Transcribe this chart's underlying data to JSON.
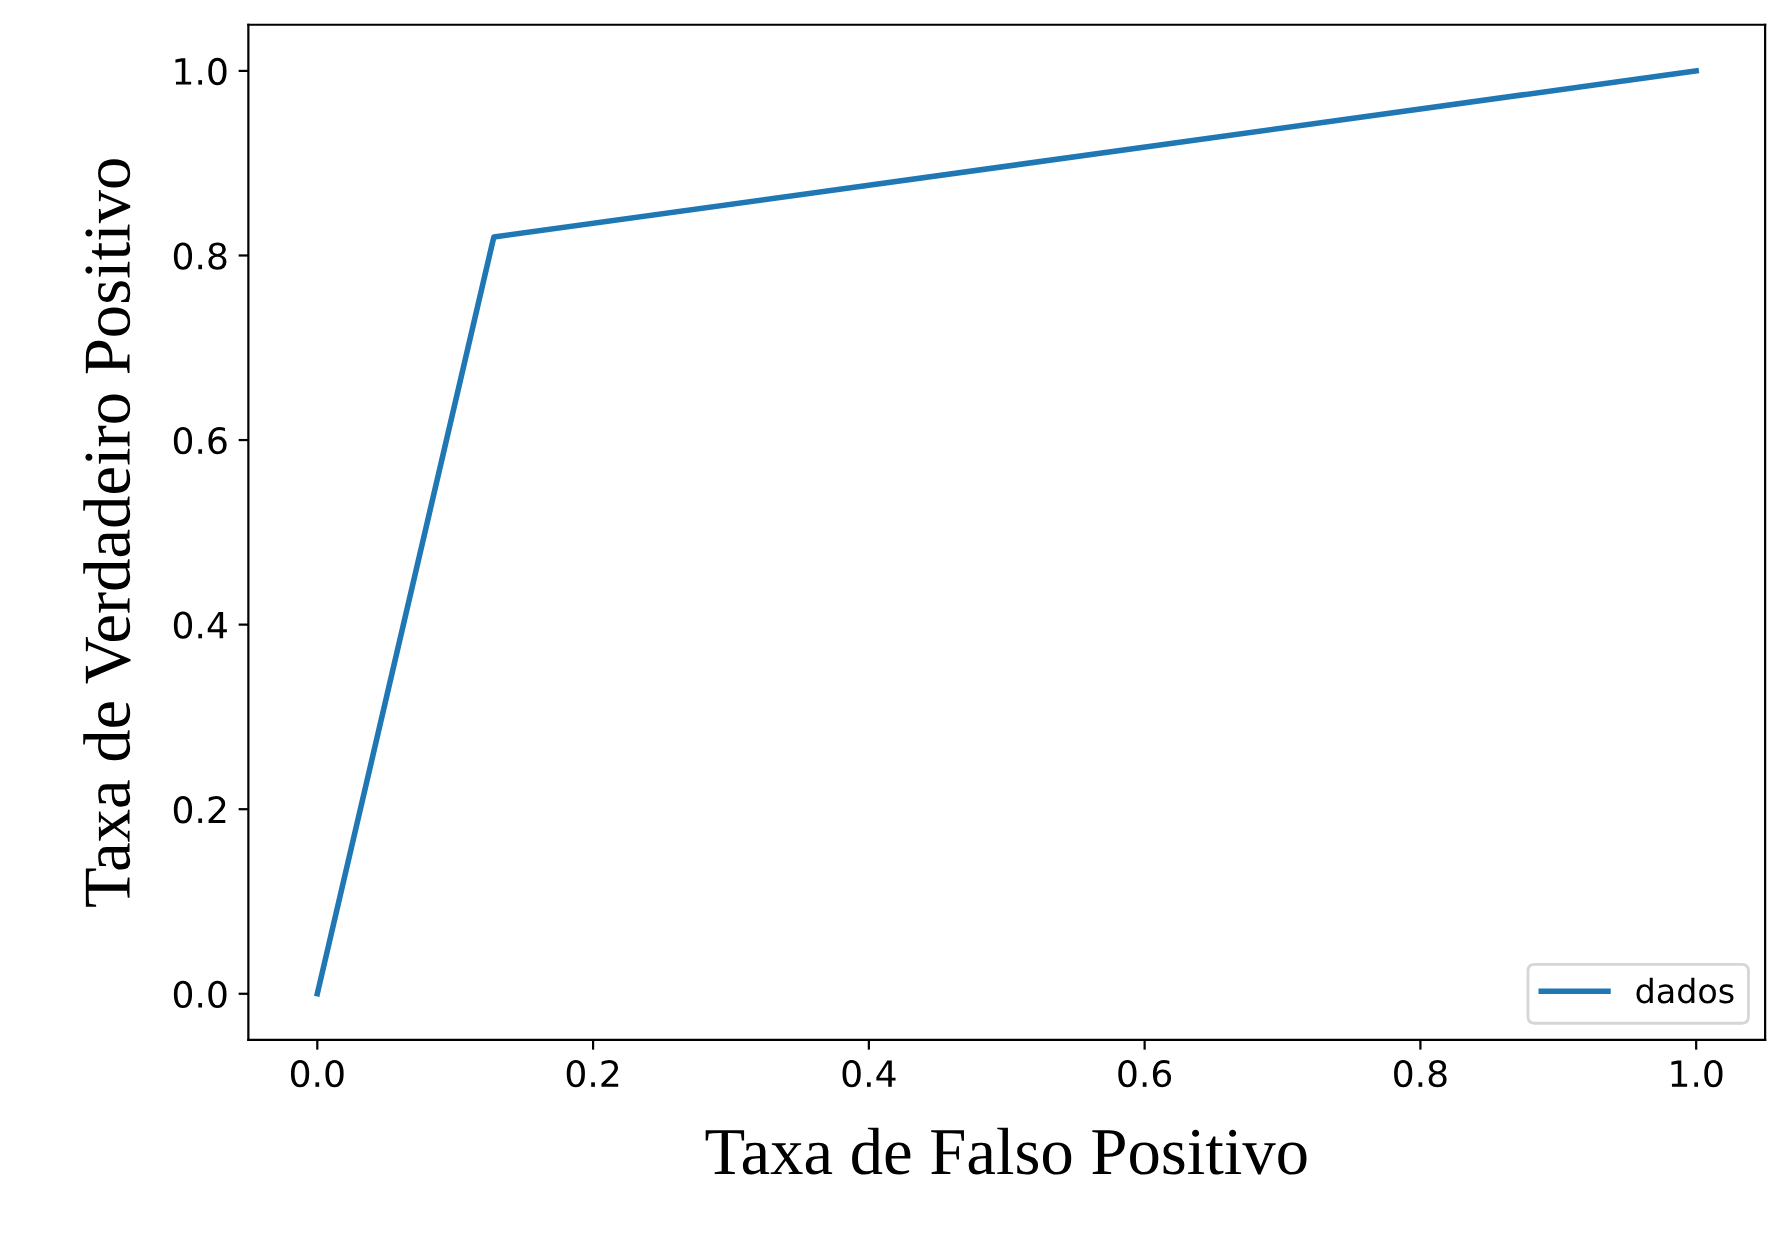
{
  "chart_data": {
    "type": "line",
    "xlabel": "Taxa de Falso Positivo",
    "ylabel": "Taxa de Verdadeiro Positivo",
    "series": [
      {
        "name": "dados",
        "color": "#1f77b4",
        "x": [
          0.0,
          0.128,
          1.0
        ],
        "values": [
          0.0,
          0.82,
          1.0
        ]
      }
    ],
    "xlim": [
      -0.05,
      1.05
    ],
    "ylim": [
      -0.05,
      1.05
    ],
    "xticks": [
      {
        "value": 0,
        "label": "0.0"
      },
      {
        "value": 0.2,
        "label": "0.2"
      },
      {
        "value": 0.4,
        "label": "0.4"
      },
      {
        "value": 0.6,
        "label": "0.6"
      },
      {
        "value": 0.8,
        "label": "0.8"
      },
      {
        "value": 1,
        "label": "1.0"
      }
    ],
    "yticks": [
      {
        "value": 0,
        "label": "0.0"
      },
      {
        "value": 0.2,
        "label": "0.2"
      },
      {
        "value": 0.4,
        "label": "0.4"
      },
      {
        "value": 0.6,
        "label": "0.6"
      },
      {
        "value": 0.8,
        "label": "0.8"
      },
      {
        "value": 1,
        "label": "1.0"
      }
    ],
    "grid": false,
    "legend": "lower right",
    "marker": "none",
    "line_style": "solid"
  }
}
